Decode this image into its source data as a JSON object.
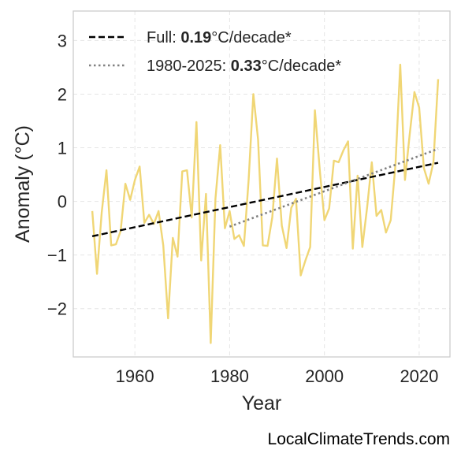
{
  "chart_data": {
    "type": "line",
    "xlabel": "Year",
    "ylabel": "Anomaly (°C)",
    "xlim": [
      1947,
      2026.5
    ],
    "ylim": [
      -2.9,
      3.55
    ],
    "xticks": [
      1960,
      1980,
      2000,
      2020
    ],
    "xtick_labels": [
      "1960",
      "1980",
      "2000",
      "2020"
    ],
    "yticks": [
      -2,
      -1,
      0,
      1,
      2,
      3
    ],
    "ytick_labels": [
      "−2",
      "−1",
      "0",
      "1",
      "2",
      "3"
    ],
    "grid": true,
    "legend_position": "top-left",
    "colors": {
      "series": "#f0d675",
      "full_trend": "#000000",
      "recent_trend": "#808080",
      "grid": "#e5e5e5",
      "frame": "#cccccc"
    },
    "series": [
      {
        "x": [
          1951,
          1952,
          1953,
          1954,
          1955,
          1956,
          1957,
          1958,
          1959,
          1960,
          1961,
          1962,
          1963,
          1964,
          1965,
          1966,
          1967,
          1968,
          1969,
          1970,
          1971,
          1972,
          1973,
          1974,
          1975,
          1976,
          1977,
          1978,
          1979,
          1980,
          1981,
          1982,
          1983,
          1984,
          1985,
          1986,
          1987,
          1988,
          1989,
          1990,
          1991,
          1992,
          1993,
          1994,
          1995,
          1996,
          1997,
          1998,
          1999,
          2000,
          2001,
          2002,
          2003,
          2004,
          2005,
          2006,
          2007,
          2008,
          2009,
          2010,
          2011,
          2012,
          2013,
          2014,
          2015,
          2016,
          2017,
          2018,
          2019,
          2020,
          2021,
          2022,
          2023,
          2024
        ],
        "values": [
          -0.18,
          -1.35,
          -0.2,
          0.58,
          -0.82,
          -0.8,
          -0.55,
          0.33,
          0.03,
          0.4,
          0.65,
          -0.4,
          -0.25,
          -0.42,
          -0.18,
          -0.82,
          -2.18,
          -0.68,
          -1.03,
          0.56,
          0.58,
          -0.3,
          1.48,
          -1.1,
          0.14,
          -2.64,
          0.05,
          1.05,
          -0.5,
          -0.18,
          -0.7,
          -0.63,
          -0.83,
          0.4,
          2.0,
          1.15,
          -0.82,
          -0.83,
          -0.3,
          0.8,
          -0.45,
          -0.87,
          -0.12,
          0.05,
          -1.38,
          -1.1,
          -0.85,
          1.7,
          0.6,
          -0.35,
          -0.13,
          0.76,
          0.73,
          0.95,
          1.12,
          -0.88,
          0.48,
          -0.85,
          -0.12,
          0.73,
          -0.27,
          -0.16,
          -0.58,
          -0.35,
          0.7,
          2.55,
          0.4,
          1.25,
          2.04,
          1.75,
          0.62,
          0.33,
          0.73,
          2.28
        ]
      }
    ],
    "trend_lines": [
      {
        "label": "Full",
        "style": "dashed",
        "x": [
          1951,
          2024
        ],
        "values": [
          -0.65,
          0.72
        ]
      },
      {
        "label": "1980-2025",
        "style": "dotted",
        "x": [
          1980,
          2024
        ],
        "values": [
          -0.47,
          0.98
        ]
      }
    ],
    "legend": [
      {
        "prefix": "Full: ",
        "bold": "0.19",
        "suffix": "°C/decade*"
      },
      {
        "prefix": "1980-2025: ",
        "bold": "0.33",
        "suffix": "°C/decade*"
      }
    ]
  },
  "credit": "LocalClimateTrends.com"
}
